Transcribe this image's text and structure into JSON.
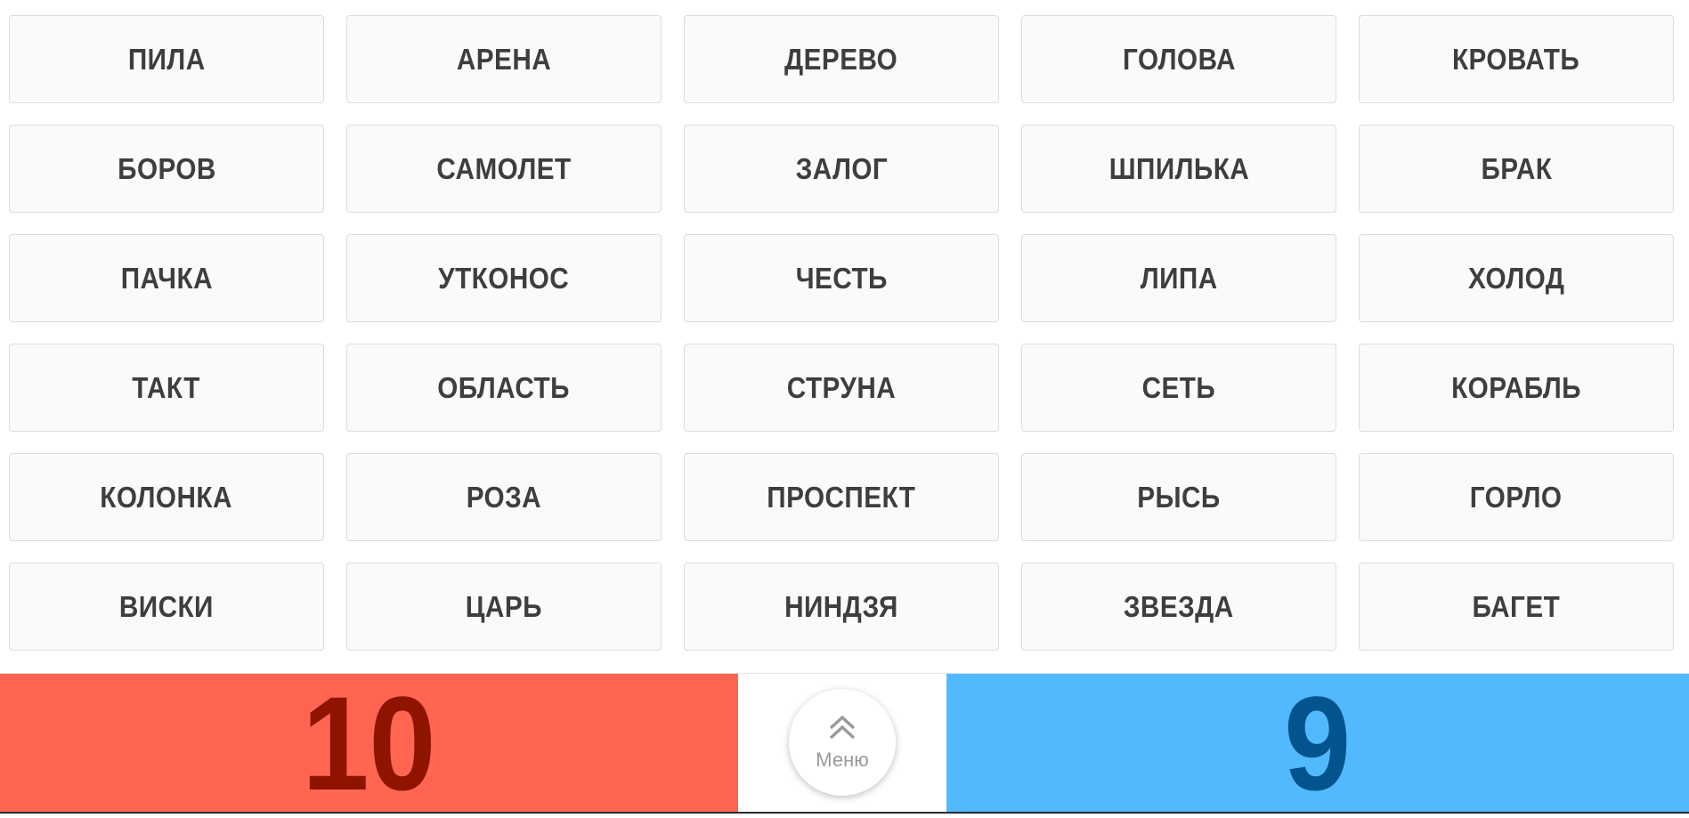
{
  "words": [
    "ПИЛА",
    "АРЕНА",
    "ДЕРЕВО",
    "ГОЛОВА",
    "КРОВАТЬ",
    "БОРОВ",
    "САМОЛЕТ",
    "ЗАЛОГ",
    "ШПИЛЬКА",
    "БРАК",
    "ПАЧКА",
    "УТКОНОС",
    "ЧЕСТЬ",
    "ЛИПА",
    "ХОЛОД",
    "ТАКТ",
    "ОБЛАСТЬ",
    "СТРУНА",
    "СЕТЬ",
    "КОРАБЛЬ",
    "КОЛОНКА",
    "РОЗА",
    "ПРОСПЕКТ",
    "РЫСЬ",
    "ГОРЛО",
    "ВИСКИ",
    "ЦАРЬ",
    "НИНДЗЯ",
    "ЗВЕЗДА",
    "БАГЕТ"
  ],
  "scores": {
    "red": "10",
    "blue": "9"
  },
  "menu": {
    "label": "Меню",
    "icon": "double-chevron-up-icon"
  },
  "colors": {
    "red_team": "#ff6551",
    "blue_team": "#52b9ff",
    "red_score": "#8e1400",
    "blue_score": "#03548d"
  }
}
